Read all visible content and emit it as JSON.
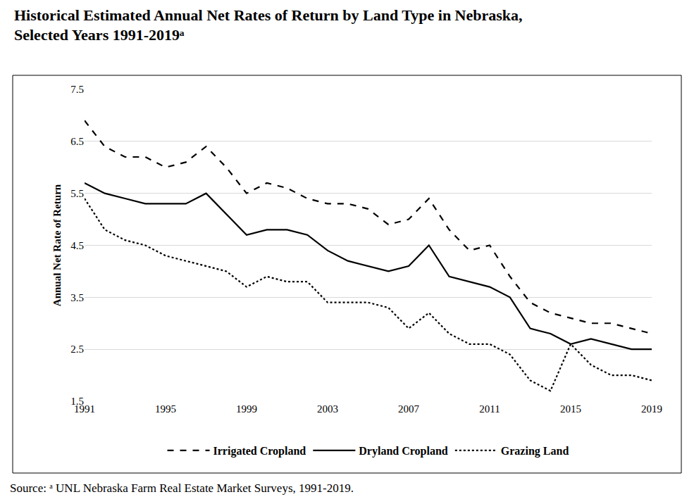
{
  "chart_data": {
    "type": "line",
    "title": "Historical Estimated Annual Net Rates of Return by Land Type in Nebraska, Selected Years 1991-2019ᵃ",
    "y_label": "Annual Net Rate of Return",
    "annotations": [
      "Source: ᵃ UNL Nebraska Farm Real Estate Market Surveys, 1991-2019."
    ],
    "x": [
      1991,
      1992,
      1993,
      1994,
      1995,
      1996,
      1997,
      1998,
      1999,
      2000,
      2001,
      2002,
      2003,
      2004,
      2005,
      2006,
      2007,
      2008,
      2009,
      2010,
      2011,
      2012,
      2013,
      2014,
      2015,
      2016,
      2017,
      2018,
      2019
    ],
    "series": [
      {
        "name": "Irrigated Cropland",
        "color": "#000000",
        "line_style": "dash",
        "values": [
          6.9,
          6.4,
          6.2,
          6.2,
          6.0,
          6.1,
          6.4,
          6.0,
          5.5,
          5.7,
          5.6,
          5.4,
          5.3,
          5.3,
          5.2,
          4.9,
          5.0,
          5.4,
          4.8,
          4.4,
          4.5,
          3.9,
          3.4,
          3.2,
          3.1,
          3.0,
          3.0,
          2.9,
          2.8
        ]
      },
      {
        "name": "Dryland Cropland",
        "color": "#000000",
        "line_style": "solid",
        "values": [
          5.7,
          5.5,
          5.4,
          5.3,
          5.3,
          5.3,
          5.5,
          5.1,
          4.7,
          4.8,
          4.8,
          4.7,
          4.4,
          4.2,
          4.1,
          4.0,
          4.1,
          4.5,
          3.9,
          3.8,
          3.7,
          3.5,
          2.9,
          2.8,
          2.6,
          2.7,
          2.6,
          2.5,
          2.5
        ]
      },
      {
        "name": "Grazing Land",
        "color": "#000000",
        "line_style": "dot",
        "values": [
          5.4,
          4.8,
          4.6,
          4.5,
          4.3,
          4.2,
          4.1,
          4.0,
          3.7,
          3.9,
          3.8,
          3.8,
          3.4,
          3.4,
          3.4,
          3.3,
          2.9,
          3.2,
          2.8,
          2.6,
          2.6,
          2.4,
          1.9,
          1.7,
          2.6,
          2.2,
          2.0,
          2.0,
          1.9
        ]
      }
    ],
    "xlim": [
      1991,
      2019
    ],
    "xticks": [
      1991,
      1995,
      1999,
      2003,
      2007,
      2011,
      2015,
      2019
    ],
    "ylim": [
      1.5,
      7.5
    ],
    "yticks": [
      1.5,
      2.5,
      3.5,
      4.5,
      5.5,
      6.5,
      7.5
    ],
    "grid": true,
    "legend": "bottom"
  }
}
